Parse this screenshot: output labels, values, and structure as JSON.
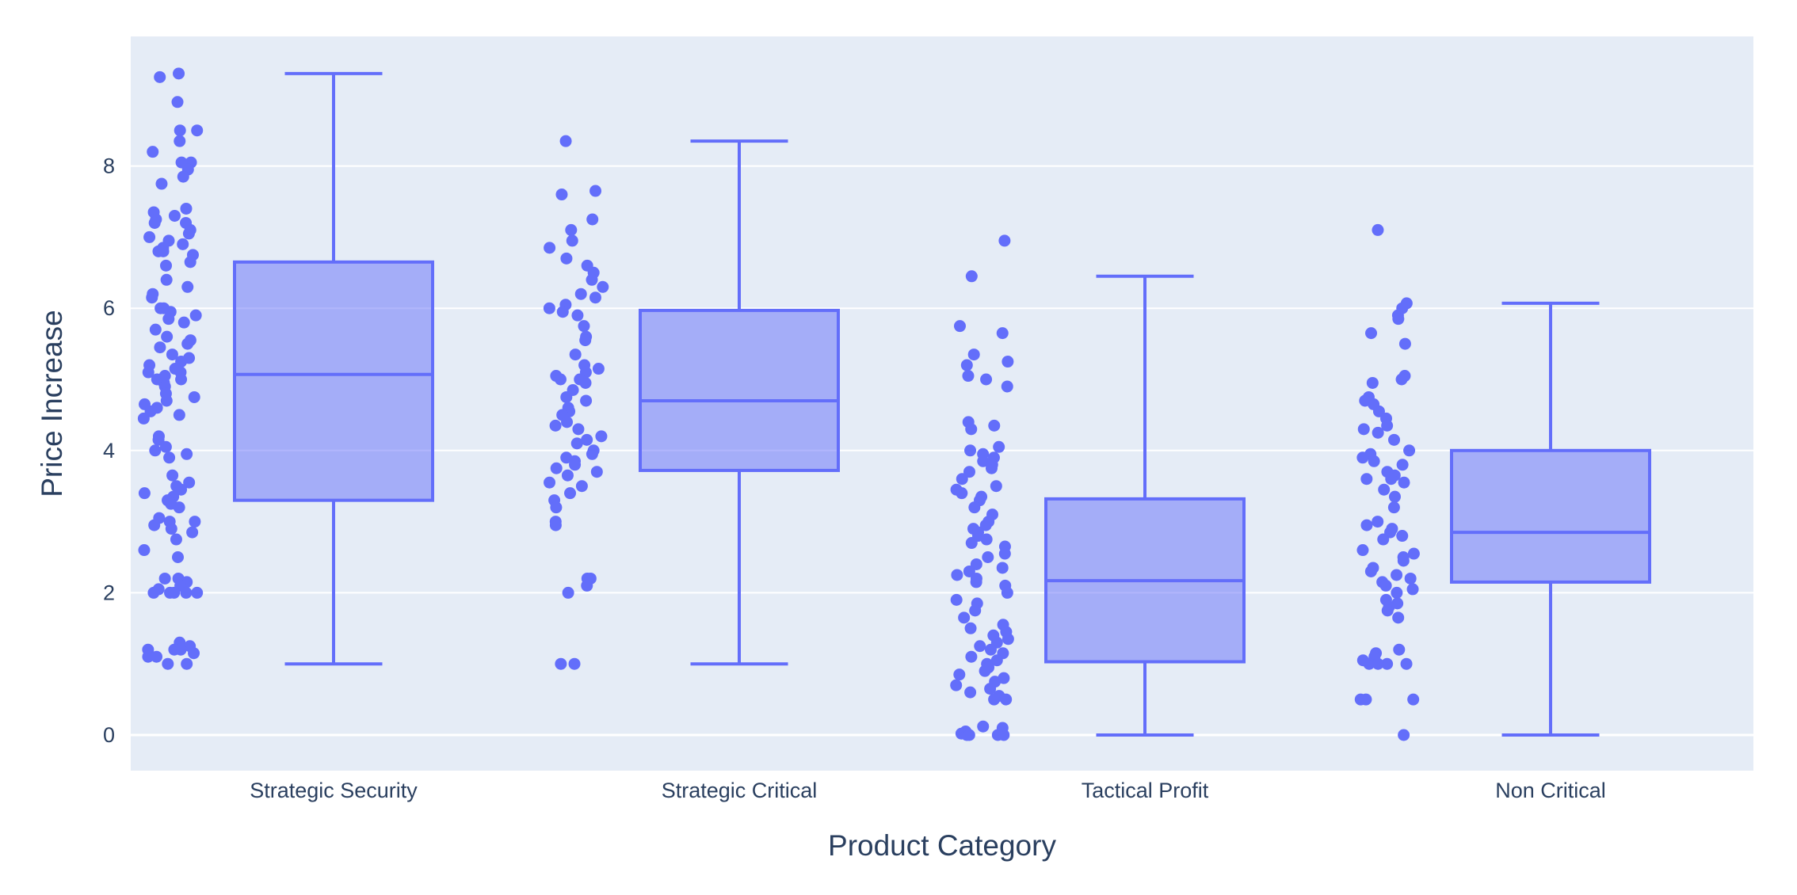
{
  "chart_data": {
    "type": "box",
    "xlabel": "Product Category",
    "ylabel": "Price Increase",
    "ylim": [
      -0.5,
      9.8
    ],
    "yticks": [
      "0",
      "2",
      "4",
      "6",
      "8"
    ],
    "grid": true,
    "legend": "none",
    "colors": {
      "plot_bg": "#e5ecf6",
      "page_bg": "#ffffff",
      "box": "#636efa",
      "box_fill": "rgba(99,110,250,0.5)",
      "grid": "#ffffff",
      "text": "#2a3f5f"
    },
    "categories": [
      "Strategic Security",
      "Strategic Critical",
      "Tactical Profit",
      "Non Critical"
    ],
    "boxes": [
      {
        "category": "Strategic Security",
        "lowerfence": 1.0,
        "q1": 3.3,
        "median": 5.07,
        "q3": 6.65,
        "upperfence": 9.3,
        "points": [
          9.3,
          9.25,
          8.9,
          8.5,
          8.5,
          8.35,
          8.2,
          8.05,
          8.05,
          7.95,
          7.85,
          7.75,
          7.4,
          7.35,
          7.3,
          7.25,
          7.2,
          7.2,
          7.1,
          7.05,
          7.0,
          6.95,
          6.9,
          6.85,
          6.8,
          6.8,
          6.75,
          6.65,
          6.6,
          6.4,
          6.3,
          6.2,
          6.15,
          6.0,
          6.0,
          5.95,
          5.9,
          5.85,
          5.8,
          5.7,
          5.6,
          5.55,
          5.5,
          5.45,
          5.35,
          5.3,
          5.25,
          5.2,
          5.15,
          5.1,
          5.1,
          5.05,
          5.0,
          5.0,
          4.95,
          4.9,
          4.8,
          4.75,
          4.7,
          4.65,
          4.6,
          4.55,
          4.5,
          4.45,
          4.2,
          4.15,
          4.05,
          4.0,
          3.95,
          3.9,
          3.65,
          3.55,
          3.5,
          3.45,
          3.4,
          3.35,
          3.3,
          3.25,
          3.2,
          3.05,
          3.0,
          3.0,
          2.95,
          2.9,
          2.85,
          2.75,
          2.6,
          2.5,
          2.2,
          2.2,
          2.15,
          2.1,
          2.05,
          2.0,
          2.0,
          2.0,
          2.0,
          2.0,
          1.3,
          1.25,
          1.2,
          1.2,
          1.2,
          1.15,
          1.1,
          1.1,
          1.0,
          1.0
        ]
      },
      {
        "category": "Strategic Critical",
        "lowerfence": 1.0,
        "q1": 3.72,
        "median": 4.7,
        "q3": 5.97,
        "upperfence": 8.35,
        "points": [
          8.35,
          7.65,
          7.6,
          7.25,
          7.1,
          6.95,
          6.85,
          6.7,
          6.6,
          6.5,
          6.4,
          6.3,
          6.2,
          6.15,
          6.05,
          6.0,
          5.95,
          5.9,
          5.75,
          5.6,
          5.55,
          5.35,
          5.2,
          5.15,
          5.1,
          5.05,
          5.0,
          5.0,
          4.95,
          4.85,
          4.75,
          4.7,
          4.6,
          4.55,
          4.5,
          4.4,
          4.35,
          4.3,
          4.2,
          4.15,
          4.1,
          4.0,
          3.95,
          3.9,
          3.85,
          3.8,
          3.75,
          3.7,
          3.65,
          3.55,
          3.5,
          3.4,
          3.3,
          3.2,
          3.0,
          2.95,
          2.2,
          2.2,
          2.1,
          2.0,
          1.0,
          1.0
        ]
      },
      {
        "category": "Tactical Profit",
        "lowerfence": 0.0,
        "q1": 1.03,
        "median": 2.17,
        "q3": 3.32,
        "upperfence": 6.45,
        "points": [
          6.95,
          6.45,
          5.75,
          5.65,
          5.35,
          5.25,
          5.2,
          5.05,
          5.0,
          4.9,
          4.4,
          4.35,
          4.3,
          4.05,
          4.0,
          3.95,
          3.9,
          3.85,
          3.8,
          3.75,
          3.7,
          3.6,
          3.5,
          3.45,
          3.4,
          3.35,
          3.3,
          3.2,
          3.1,
          3.0,
          2.95,
          2.9,
          2.85,
          2.8,
          2.75,
          2.7,
          2.65,
          2.55,
          2.5,
          2.4,
          2.35,
          2.3,
          2.25,
          2.2,
          2.15,
          2.1,
          2.0,
          1.9,
          1.85,
          1.75,
          1.65,
          1.55,
          1.5,
          1.45,
          1.4,
          1.35,
          1.3,
          1.25,
          1.2,
          1.15,
          1.1,
          1.05,
          1.0,
          0.95,
          0.9,
          0.85,
          0.8,
          0.75,
          0.7,
          0.65,
          0.6,
          0.55,
          0.5,
          0.5,
          0.12,
          0.1,
          0.05,
          0.02,
          0.0,
          0.0,
          0.0,
          0.0
        ]
      },
      {
        "category": "Non Critical",
        "lowerfence": 0.0,
        "q1": 2.15,
        "median": 2.85,
        "q3": 4.0,
        "upperfence": 6.07,
        "points": [
          7.1,
          6.07,
          6.0,
          5.9,
          5.85,
          5.65,
          5.5,
          5.05,
          5.0,
          4.95,
          4.75,
          4.7,
          4.65,
          4.55,
          4.45,
          4.35,
          4.3,
          4.25,
          4.15,
          4.0,
          3.95,
          3.9,
          3.85,
          3.8,
          3.7,
          3.65,
          3.6,
          3.6,
          3.55,
          3.45,
          3.35,
          3.2,
          3.0,
          2.95,
          2.9,
          2.85,
          2.8,
          2.75,
          2.6,
          2.55,
          2.5,
          2.45,
          2.35,
          2.3,
          2.25,
          2.2,
          2.15,
          2.1,
          2.05,
          2.0,
          1.9,
          1.85,
          1.8,
          1.75,
          1.65,
          1.2,
          1.15,
          1.1,
          1.05,
          1.0,
          1.0,
          1.0,
          1.0,
          0.5,
          0.5,
          0.5,
          0.0
        ]
      }
    ]
  }
}
